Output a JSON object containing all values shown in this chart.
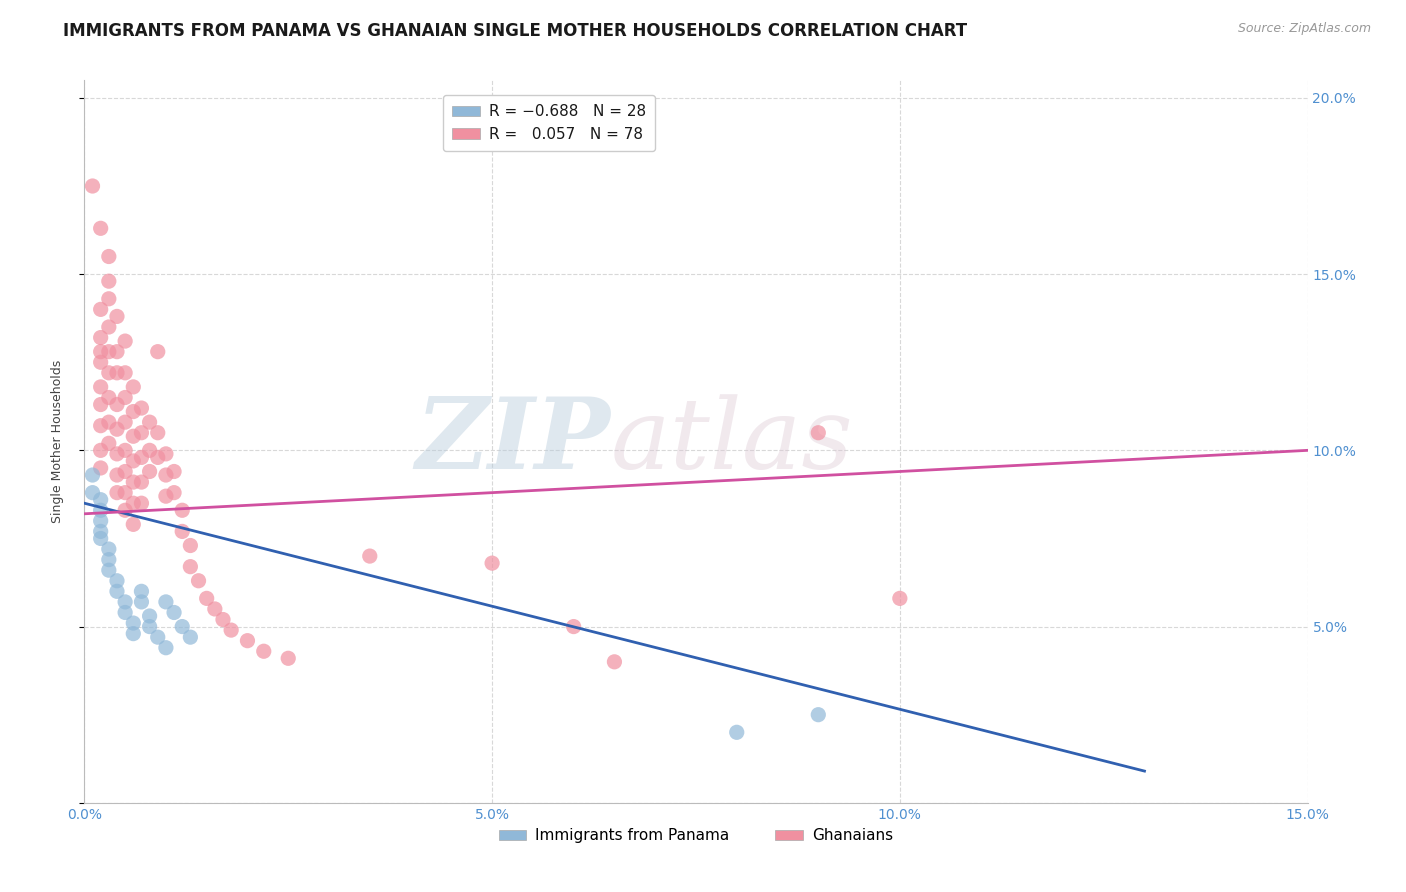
{
  "title": "IMMIGRANTS FROM PANAMA VS GHANAIAN SINGLE MOTHER HOUSEHOLDS CORRELATION CHART",
  "source": "Source: ZipAtlas.com",
  "ylabel": "Single Mother Households",
  "xlim": [
    0.0,
    0.15
  ],
  "ylim": [
    0.0,
    0.205
  ],
  "xtick_vals": [
    0.0,
    0.05,
    0.1,
    0.15
  ],
  "ytick_vals": [
    0.0,
    0.05,
    0.1,
    0.15,
    0.2
  ],
  "blue_scatter": [
    [
      0.001,
      0.093
    ],
    [
      0.001,
      0.088
    ],
    [
      0.002,
      0.086
    ],
    [
      0.002,
      0.083
    ],
    [
      0.002,
      0.08
    ],
    [
      0.002,
      0.077
    ],
    [
      0.002,
      0.075
    ],
    [
      0.003,
      0.072
    ],
    [
      0.003,
      0.069
    ],
    [
      0.003,
      0.066
    ],
    [
      0.004,
      0.063
    ],
    [
      0.004,
      0.06
    ],
    [
      0.005,
      0.057
    ],
    [
      0.005,
      0.054
    ],
    [
      0.006,
      0.051
    ],
    [
      0.006,
      0.048
    ],
    [
      0.007,
      0.06
    ],
    [
      0.007,
      0.057
    ],
    [
      0.008,
      0.053
    ],
    [
      0.008,
      0.05
    ],
    [
      0.009,
      0.047
    ],
    [
      0.01,
      0.044
    ],
    [
      0.01,
      0.057
    ],
    [
      0.011,
      0.054
    ],
    [
      0.012,
      0.05
    ],
    [
      0.013,
      0.047
    ],
    [
      0.08,
      0.02
    ],
    [
      0.09,
      0.025
    ]
  ],
  "pink_scatter": [
    [
      0.001,
      0.175
    ],
    [
      0.002,
      0.163
    ],
    [
      0.002,
      0.14
    ],
    [
      0.002,
      0.132
    ],
    [
      0.002,
      0.128
    ],
    [
      0.002,
      0.125
    ],
    [
      0.002,
      0.118
    ],
    [
      0.002,
      0.113
    ],
    [
      0.002,
      0.107
    ],
    [
      0.002,
      0.1
    ],
    [
      0.002,
      0.095
    ],
    [
      0.003,
      0.155
    ],
    [
      0.003,
      0.148
    ],
    [
      0.003,
      0.143
    ],
    [
      0.003,
      0.135
    ],
    [
      0.003,
      0.128
    ],
    [
      0.003,
      0.122
    ],
    [
      0.003,
      0.115
    ],
    [
      0.003,
      0.108
    ],
    [
      0.003,
      0.102
    ],
    [
      0.004,
      0.138
    ],
    [
      0.004,
      0.128
    ],
    [
      0.004,
      0.122
    ],
    [
      0.004,
      0.113
    ],
    [
      0.004,
      0.106
    ],
    [
      0.004,
      0.099
    ],
    [
      0.004,
      0.093
    ],
    [
      0.004,
      0.088
    ],
    [
      0.005,
      0.131
    ],
    [
      0.005,
      0.122
    ],
    [
      0.005,
      0.115
    ],
    [
      0.005,
      0.108
    ],
    [
      0.005,
      0.1
    ],
    [
      0.005,
      0.094
    ],
    [
      0.005,
      0.088
    ],
    [
      0.005,
      0.083
    ],
    [
      0.006,
      0.118
    ],
    [
      0.006,
      0.111
    ],
    [
      0.006,
      0.104
    ],
    [
      0.006,
      0.097
    ],
    [
      0.006,
      0.091
    ],
    [
      0.006,
      0.085
    ],
    [
      0.006,
      0.079
    ],
    [
      0.007,
      0.112
    ],
    [
      0.007,
      0.105
    ],
    [
      0.007,
      0.098
    ],
    [
      0.007,
      0.091
    ],
    [
      0.007,
      0.085
    ],
    [
      0.008,
      0.108
    ],
    [
      0.008,
      0.1
    ],
    [
      0.008,
      0.094
    ],
    [
      0.009,
      0.128
    ],
    [
      0.009,
      0.105
    ],
    [
      0.009,
      0.098
    ],
    [
      0.01,
      0.099
    ],
    [
      0.01,
      0.093
    ],
    [
      0.01,
      0.087
    ],
    [
      0.011,
      0.094
    ],
    [
      0.011,
      0.088
    ],
    [
      0.012,
      0.083
    ],
    [
      0.012,
      0.077
    ],
    [
      0.013,
      0.073
    ],
    [
      0.013,
      0.067
    ],
    [
      0.014,
      0.063
    ],
    [
      0.015,
      0.058
    ],
    [
      0.016,
      0.055
    ],
    [
      0.017,
      0.052
    ],
    [
      0.018,
      0.049
    ],
    [
      0.02,
      0.046
    ],
    [
      0.022,
      0.043
    ],
    [
      0.025,
      0.041
    ],
    [
      0.035,
      0.07
    ],
    [
      0.05,
      0.068
    ],
    [
      0.06,
      0.05
    ],
    [
      0.065,
      0.04
    ],
    [
      0.09,
      0.105
    ],
    [
      0.1,
      0.058
    ]
  ],
  "blue_line_x": [
    0.0,
    0.13
  ],
  "blue_line_y": [
    0.085,
    0.009
  ],
  "pink_line_x": [
    0.0,
    0.15
  ],
  "pink_line_y": [
    0.082,
    0.1
  ],
  "blue_scatter_color": "#90b8d8",
  "pink_scatter_color": "#f090a0",
  "blue_line_color": "#3060b0",
  "pink_line_color": "#d050a0",
  "background_color": "#ffffff",
  "grid_color": "#d8d8d8",
  "title_fontsize": 12,
  "axis_label_fontsize": 9,
  "tick_fontsize": 10,
  "source_fontsize": 9
}
